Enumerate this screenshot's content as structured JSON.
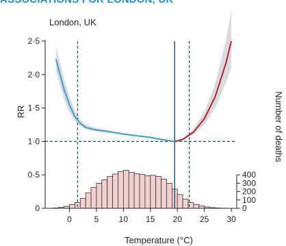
{
  "header": {
    "banner_text": "ASSOCIATIONS FOR LONDON, UK"
  },
  "colors": {
    "banner": "#1f8fd1",
    "cold_curve": "#3aa0cc",
    "heat_curve": "#b3262a",
    "ci_band": "#d9dbe0",
    "bars_fill": "#f3cfcf",
    "bars_stroke": "#333333",
    "guides": "#1f4e64"
  },
  "chart_data": {
    "type": "line",
    "title": "London, UK",
    "xlabel": "Temperature (°C)",
    "ylabel": "RR",
    "y2label": "Number of deaths",
    "xlim": [
      -4.5,
      31
    ],
    "ylim": [
      0,
      2.5
    ],
    "y2lim": [
      0,
      2000
    ],
    "xticks": [
      0,
      5,
      10,
      15,
      20,
      25,
      30
    ],
    "yticks": [
      0,
      0.5,
      1.0,
      1.5,
      2.0,
      2.5
    ],
    "ytick_labels": [
      "0",
      "0·5",
      "1·0",
      "1·5",
      "2·0",
      "2·5"
    ],
    "y2ticks": [
      0,
      100,
      200,
      300,
      400
    ],
    "reference_line": 1.0,
    "mmt": 19.5,
    "cold_threshold": 1.5,
    "heat_threshold": 22.2,
    "grid": false,
    "series": [
      {
        "name": "",
        "x": [
          -2.5,
          -1,
          0,
          1,
          2,
          3,
          5,
          7,
          10,
          12,
          15,
          17,
          19.5
        ],
        "y": [
          2.23,
          1.78,
          1.55,
          1.37,
          1.27,
          1.21,
          1.17,
          1.15,
          1.11,
          1.09,
          1.06,
          1.03,
          1.0
        ],
        "lower": [
          2.06,
          1.63,
          1.44,
          1.3,
          1.23,
          1.18,
          1.15,
          1.13,
          1.1,
          1.08,
          1.05,
          1.02,
          1.0
        ],
        "upper": [
          2.42,
          1.94,
          1.67,
          1.46,
          1.33,
          1.25,
          1.2,
          1.17,
          1.13,
          1.1,
          1.07,
          1.04,
          1.0
        ]
      },
      {
        "name": "",
        "x": [
          19.5,
          21,
          23,
          25,
          27,
          29,
          30
        ],
        "y": [
          1.0,
          1.03,
          1.14,
          1.34,
          1.67,
          2.17,
          2.5
        ],
        "lower": [
          1.0,
          1.02,
          1.1,
          1.25,
          1.5,
          1.88,
          2.1
        ],
        "upper": [
          1.0,
          1.04,
          1.19,
          1.44,
          1.86,
          2.52,
          2.96
        ]
      }
    ],
    "histogram": {
      "bin_width": 1,
      "bin_starts": [
        -3,
        -2,
        -1,
        0,
        1,
        2,
        3,
        4,
        5,
        6,
        7,
        8,
        9,
        10,
        11,
        12,
        13,
        14,
        15,
        16,
        17,
        18,
        19,
        20,
        21,
        22,
        23,
        24,
        25,
        26,
        27,
        28,
        29
      ],
      "counts": [
        4,
        12,
        24,
        45,
        70,
        120,
        185,
        250,
        300,
        340,
        380,
        410,
        440,
        455,
        430,
        415,
        405,
        390,
        395,
        380,
        350,
        300,
        230,
        165,
        110,
        70,
        45,
        30,
        16,
        8,
        4,
        2,
        1
      ]
    }
  }
}
